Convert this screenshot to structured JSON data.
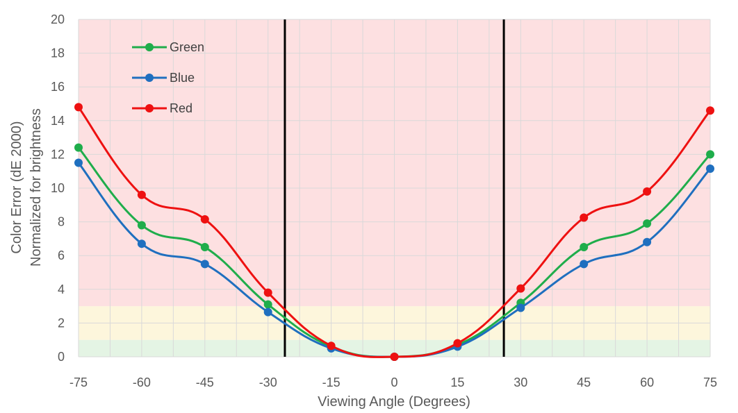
{
  "chart_data": {
    "type": "line",
    "title": "",
    "xlabel": "Viewing Angle (Degrees)",
    "ylabel_lines": [
      "Color Error (dE 2000)",
      "Normalized for brightness"
    ],
    "x": [
      -75,
      -60,
      -45,
      -30,
      -15,
      0,
      15,
      30,
      45,
      60,
      75
    ],
    "xticks": [
      -75,
      -60,
      -45,
      -30,
      -15,
      0,
      15,
      30,
      45,
      60,
      75
    ],
    "yticks": [
      0,
      2,
      4,
      6,
      8,
      10,
      12,
      14,
      16,
      18,
      20
    ],
    "xlim": [
      -75,
      75
    ],
    "ylim": [
      0,
      20
    ],
    "grid": true,
    "legend_position": "top-left",
    "series": [
      {
        "name": "Green",
        "color": "#1fad4b",
        "values": [
          12.4,
          7.8,
          6.5,
          3.1,
          0.6,
          0.0,
          0.7,
          3.2,
          6.5,
          7.9,
          12.0
        ]
      },
      {
        "name": "Blue",
        "color": "#1f6fbf",
        "values": [
          11.5,
          6.7,
          5.5,
          2.65,
          0.5,
          0.0,
          0.6,
          2.9,
          5.5,
          6.8,
          11.15
        ]
      },
      {
        "name": "Red",
        "color": "#ee1111",
        "values": [
          14.8,
          9.6,
          8.15,
          3.8,
          0.65,
          0.0,
          0.8,
          4.05,
          8.25,
          9.8,
          14.6
        ]
      }
    ],
    "bands": [
      {
        "from": 0,
        "to": 1,
        "color": "#e4f4e4"
      },
      {
        "from": 1,
        "to": 3,
        "color": "#fdf6dc"
      },
      {
        "from": 3,
        "to": 20,
        "color": "#fde0e1"
      }
    ],
    "vertical_markers": [
      -26,
      26
    ],
    "marker_color": "#000000"
  }
}
